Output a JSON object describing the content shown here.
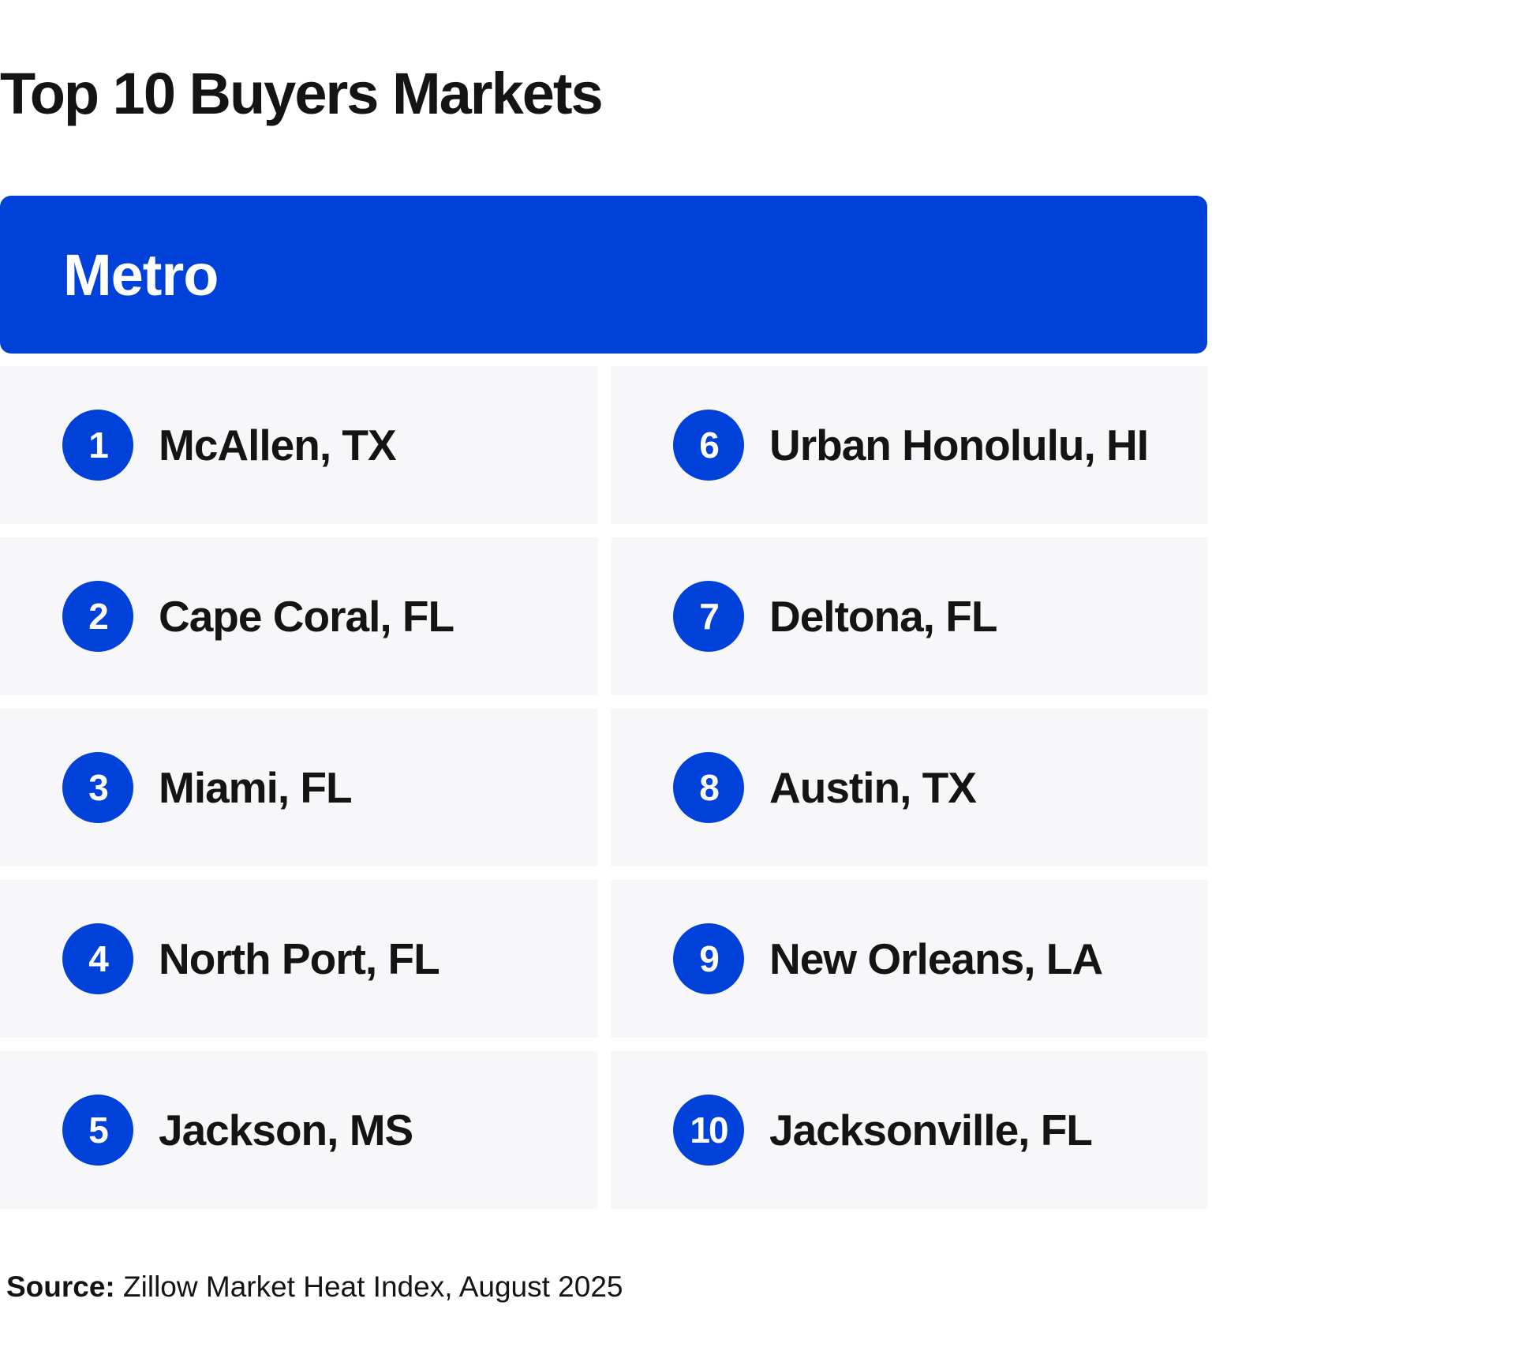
{
  "title": "Top 10 Buyers Markets",
  "header": {
    "column_label": "Metro"
  },
  "colors": {
    "accent": "#0041d9",
    "cell_background": "#f7f7f9",
    "text": "#141414"
  },
  "markets": [
    {
      "rank": "1",
      "name": "McAllen, TX"
    },
    {
      "rank": "2",
      "name": "Cape Coral, FL"
    },
    {
      "rank": "3",
      "name": "Miami, FL"
    },
    {
      "rank": "4",
      "name": "North Port, FL"
    },
    {
      "rank": "5",
      "name": "Jackson, MS"
    },
    {
      "rank": "6",
      "name": "Urban Honolulu, HI"
    },
    {
      "rank": "7",
      "name": "Deltona, FL"
    },
    {
      "rank": "8",
      "name": "Austin, TX"
    },
    {
      "rank": "9",
      "name": "New Orleans, LA"
    },
    {
      "rank": "10",
      "name": "Jacksonville, FL"
    }
  ],
  "source": {
    "label": "Source:",
    "text": "Zillow Market Heat Index, August 2025"
  }
}
